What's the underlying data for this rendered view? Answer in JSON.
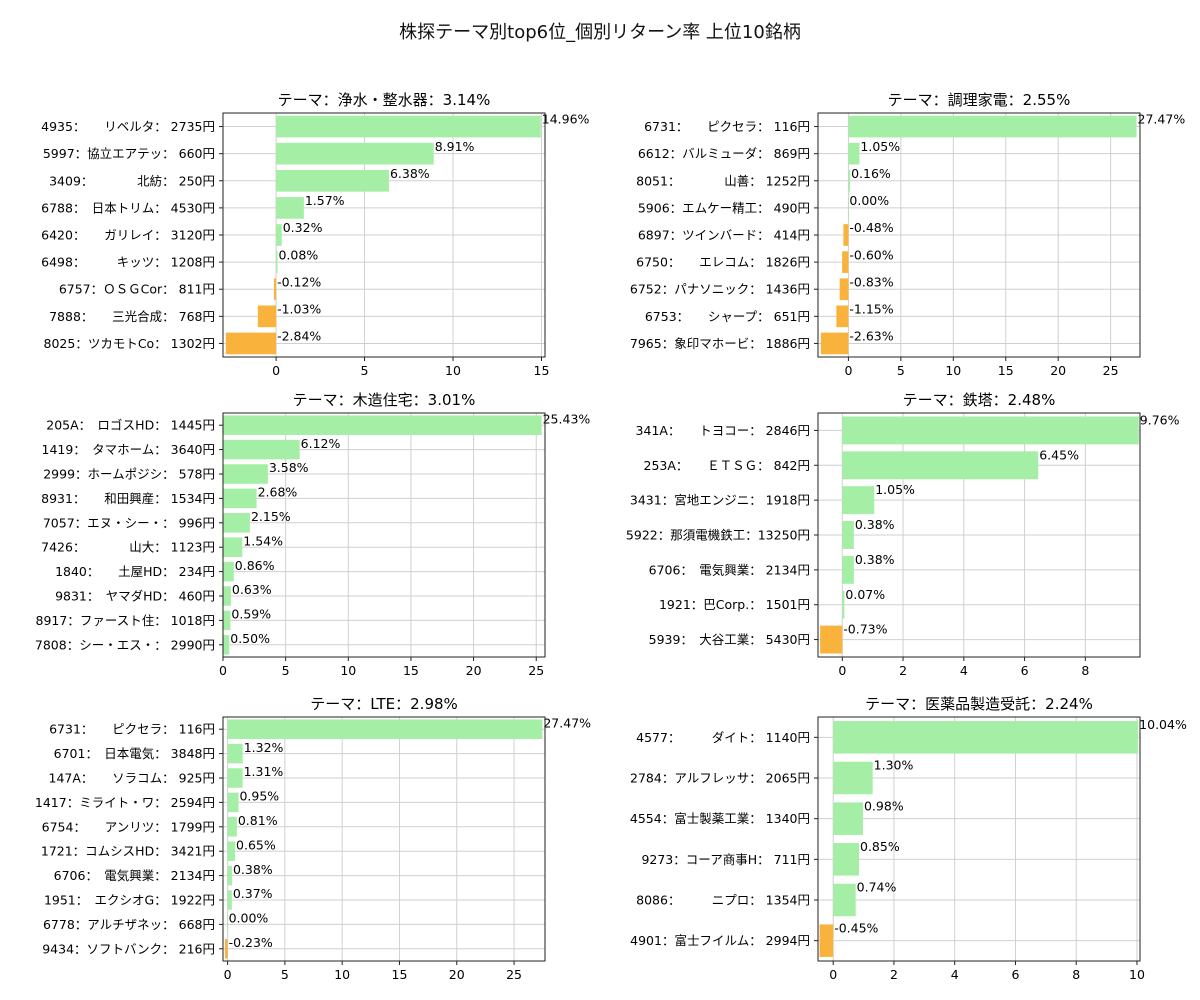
{
  "title": "株探テーマ別top6位_個別リターン率 上位10銘柄",
  "colors": {
    "positive": "#a5eea5",
    "negative": "#f9b33c",
    "grid": "#d0d0d0",
    "frame": "#222222"
  },
  "chart_data": [
    {
      "type": "bar",
      "orientation": "horizontal",
      "title": "テーマ：浄水・整水器：3.14%",
      "categories": [
        "4935：　　リベルタ： 2735円",
        "5997：協立エアテッ： 660円",
        "3409：　　　　北紡： 250円",
        "6788：　日本トリム： 4530円",
        "6420：　　ガリレイ： 3120円",
        "6498：　　　キッツ： 1208円",
        "6757：ＯＳＧCor： 811円",
        "7888：　　三光合成： 768円",
        "8025：ツカモトCo： 1302円"
      ],
      "values": [
        14.96,
        8.91,
        6.38,
        1.57,
        0.32,
        0.08,
        -0.12,
        -1.03,
        -2.84
      ],
      "data_labels": [
        "14.96%",
        "8.91%",
        "6.38%",
        "1.57%",
        "0.32%",
        "0.08%",
        "-0.12%",
        "-1.03%",
        "-2.84%"
      ],
      "xlim": [
        -3.0,
        15.2
      ],
      "xticks": [
        0,
        5,
        10,
        15
      ],
      "grid": true
    },
    {
      "type": "bar",
      "orientation": "horizontal",
      "title": "テーマ：調理家電：2.55%",
      "categories": [
        "6731：　　ピクセラ： 116円",
        "6612：バルミューダ： 869円",
        "8051：　　　　山善： 1252円",
        "5906：エムケー精工： 490円",
        "6897：ツインバード： 414円",
        "6750：　　エレコム： 1826円",
        "6752：パナソニック： 1436円",
        "6753：　　シャープ： 651円",
        "7965：象印マホービ： 1886円"
      ],
      "values": [
        27.47,
        1.05,
        0.16,
        0.0,
        -0.48,
        -0.6,
        -0.83,
        -1.15,
        -2.63
      ],
      "data_labels": [
        "27.47%",
        "1.05%",
        "0.16%",
        "0.00%",
        "-0.48%",
        "-0.60%",
        "-0.83%",
        "-1.15%",
        "-2.63%"
      ],
      "xlim": [
        -2.9,
        27.8
      ],
      "xticks": [
        0,
        5,
        10,
        15,
        20,
        25
      ],
      "grid": true
    },
    {
      "type": "bar",
      "orientation": "horizontal",
      "title": "テーマ：木造住宅：3.01%",
      "categories": [
        "205A：　ロゴスHD： 1445円",
        "1419：　タマホーム： 3640円",
        "2999：ホームポジシ： 578円",
        "8931：　　和田興産： 1534円",
        "7057：エヌ・シー・： 996円",
        "7426：　　　　山大： 1123円",
        "1840：　　土屋HD： 234円",
        "9831：　ヤマダHD： 460円",
        "8917：ファースト住： 1018円",
        "7808：シー・エス・： 2990円"
      ],
      "values": [
        25.43,
        6.12,
        3.58,
        2.68,
        2.15,
        1.54,
        0.86,
        0.63,
        0.59,
        0.5
      ],
      "data_labels": [
        "25.43%",
        "6.12%",
        "3.58%",
        "2.68%",
        "2.15%",
        "1.54%",
        "0.86%",
        "0.63%",
        "0.59%",
        "0.50%"
      ],
      "xlim": [
        0,
        25.7
      ],
      "xticks": [
        0,
        5,
        10,
        15,
        20,
        25
      ],
      "grid": true
    },
    {
      "type": "bar",
      "orientation": "horizontal",
      "title": "テーマ：鉄塔：2.48%",
      "categories": [
        "341A：　　トヨコー： 2846円",
        "253A：　　ＥＴＳＧ： 842円",
        "3431：宮地エンジニ： 1918円",
        "5922：那須電機鉄工：13250円",
        "6706：　電気興業： 2134円",
        "1921：巴Corp.： 1501円",
        "5939：　大谷工業： 5430円"
      ],
      "values": [
        9.76,
        6.45,
        1.05,
        0.38,
        0.38,
        0.07,
        -0.73
      ],
      "data_labels": [
        "9.76%",
        "6.45%",
        "1.05%",
        "0.38%",
        "0.38%",
        "0.07%",
        "-0.73%"
      ],
      "xlim": [
        -0.8,
        9.8
      ],
      "xticks": [
        0,
        2,
        4,
        6,
        8
      ],
      "grid": true
    },
    {
      "type": "bar",
      "orientation": "horizontal",
      "title": "テーマ：LTE：2.98%",
      "categories": [
        "6731：　　ピクセラ： 116円",
        "6701：　日本電気： 3848円",
        "147A：　　ソラコム： 925円",
        "1417：ミライト・ワ： 2594円",
        "6754：　　アンリツ： 1799円",
        "1721：コムシスHD： 3421円",
        "6706：　電気興業： 2134円",
        "1951：　エクシオG： 1922円",
        "6778：アルチザネッ： 668円",
        "9434：ソフトバンク： 216円"
      ],
      "values": [
        27.47,
        1.32,
        1.31,
        0.95,
        0.81,
        0.65,
        0.38,
        0.37,
        0.0,
        -0.23
      ],
      "data_labels": [
        "27.47%",
        "1.32%",
        "1.31%",
        "0.95%",
        "0.81%",
        "0.65%",
        "0.38%",
        "0.37%",
        "0.00%",
        "-0.23%"
      ],
      "xlim": [
        -0.4,
        27.7
      ],
      "xticks": [
        0,
        5,
        10,
        15,
        20,
        25
      ],
      "grid": true
    },
    {
      "type": "bar",
      "orientation": "horizontal",
      "title": "テーマ：医薬品製造受託：2.24%",
      "categories": [
        "4577：　　　ダイト： 1140円",
        "2784：アルフレッサ： 2065円",
        "4554：富士製薬工業： 1340円",
        "9273：コーア商事H： 711円",
        "8086：　　　ニプロ： 1354円",
        "4901：富士フイルム： 2994円"
      ],
      "values": [
        10.04,
        1.3,
        0.98,
        0.85,
        0.74,
        -0.45
      ],
      "data_labels": [
        "10.04%",
        "1.30%",
        "0.98%",
        "0.85%",
        "0.74%",
        "-0.45%"
      ],
      "xlim": [
        -0.5,
        10.1
      ],
      "xticks": [
        0,
        2,
        4,
        6,
        8,
        10
      ],
      "grid": true
    }
  ]
}
